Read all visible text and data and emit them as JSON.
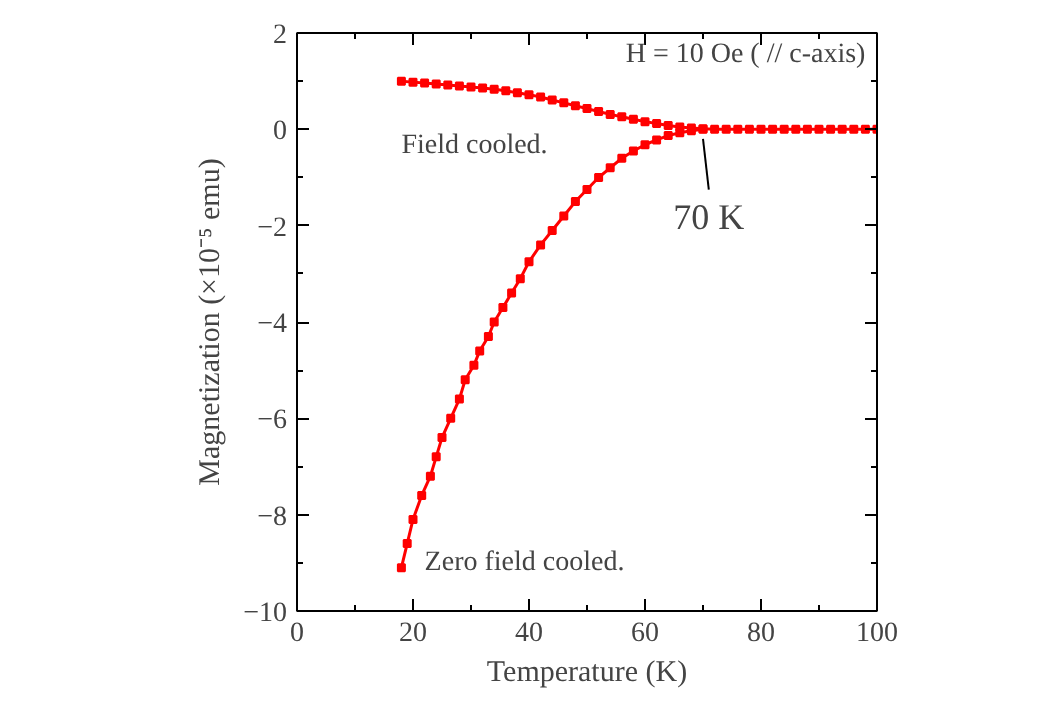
{
  "chart_data": {
    "type": "line",
    "title": "H = 10 Oe ( // c-axis)",
    "xlabel": "Temperature (K)",
    "ylabel": "Magnetization (×10⁻⁵ emu)",
    "xlim": [
      0,
      100
    ],
    "ylim": [
      -10,
      2
    ],
    "xticks": [
      0,
      20,
      40,
      60,
      80,
      100
    ],
    "yticks": [
      -10,
      -8,
      -6,
      -4,
      -2,
      0,
      2
    ],
    "grid": false,
    "marker": "square",
    "line_style": "solid",
    "series": [
      {
        "color": "#ff0000",
        "x": [
          18,
          20,
          22,
          24,
          26,
          28,
          30,
          32,
          34,
          36,
          38,
          40,
          42,
          44,
          46,
          48,
          50,
          52,
          54,
          56,
          58,
          60,
          62,
          64,
          66,
          68,
          70,
          72,
          74,
          76,
          78,
          80,
          82,
          84,
          86,
          88,
          90,
          92,
          94,
          96,
          98,
          100
        ],
        "values": [
          1.0,
          0.98,
          0.96,
          0.94,
          0.92,
          0.9,
          0.88,
          0.86,
          0.83,
          0.8,
          0.76,
          0.72,
          0.67,
          0.61,
          0.55,
          0.49,
          0.43,
          0.37,
          0.31,
          0.26,
          0.21,
          0.16,
          0.12,
          0.08,
          0.05,
          0.03,
          0.01,
          0.0,
          0.0,
          0.0,
          0.0,
          0.0,
          0.0,
          0.0,
          0.0,
          0.0,
          0.0,
          0.0,
          0.0,
          0.0,
          0.0,
          0.0
        ]
      },
      {
        "color": "#ff0000",
        "x": [
          18,
          19,
          20,
          21.5,
          23,
          24,
          25,
          26.5,
          28,
          29,
          30.5,
          31.5,
          33,
          34,
          35.5,
          37,
          38.5,
          40,
          42,
          44,
          46,
          48,
          50,
          52,
          54,
          56,
          58,
          60,
          62,
          64,
          66,
          68,
          70
        ],
        "values": [
          -9.1,
          -8.6,
          -8.1,
          -7.6,
          -7.2,
          -6.8,
          -6.4,
          -6.0,
          -5.6,
          -5.2,
          -4.9,
          -4.6,
          -4.3,
          -4.0,
          -3.7,
          -3.4,
          -3.1,
          -2.75,
          -2.4,
          -2.1,
          -1.8,
          -1.5,
          -1.25,
          -1.0,
          -0.8,
          -0.6,
          -0.45,
          -0.32,
          -0.22,
          -0.13,
          -0.07,
          -0.03,
          0.0
        ]
      }
    ],
    "annotations": [
      "Field cooled.",
      "Zero field cooled.",
      {
        "text": "70 K",
        "x": 70,
        "y": 0
      }
    ]
  }
}
